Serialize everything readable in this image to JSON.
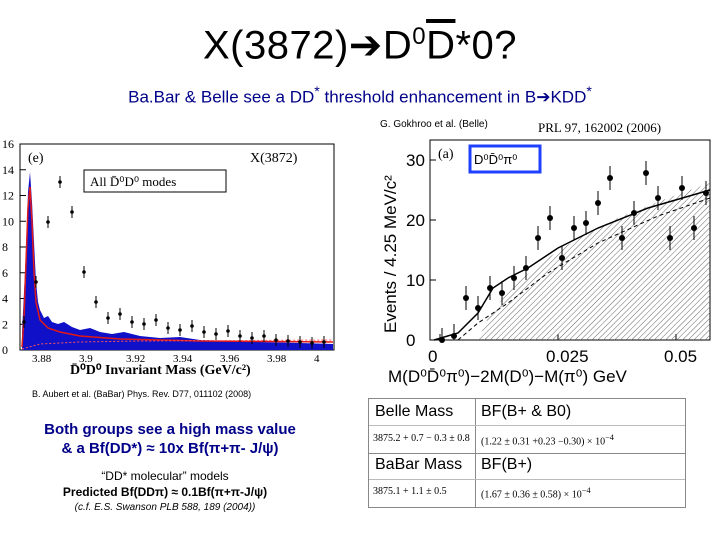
{
  "slide": {
    "title": "X(3872)",
    "title_tail": "D",
    "title_sup1": "0",
    "title_bar": "D",
    "title_star": "*0?",
    "arrow": "➔",
    "subtitle_pre": "Ba.Bar & Belle see a DD",
    "subtitle_mid": " threshold enhancement in B",
    "subtitle_post": "KDD",
    "subtitle_star": "*",
    "belle_cite": "G. Gokhroo et al. (Belle)",
    "babar_cite": "B. Aubert et al. (BaBar) Phys. Rev. D77, 011102 (2008)",
    "conclusion_line1": "Both groups see a high mass value",
    "conclusion_line2": "& a Bf(DD*) ≈ 10x Bf(π+π- J/ψ)",
    "model_line1": "“DD* molecular” models",
    "model_line2": "Predicted Bf(DDπ) ≈ 0.1Bf(π+π-J/ψ)",
    "model_line3": "(c.f. E.S. Swanson PLB 588, 189 (2004))"
  },
  "left_plot": {
    "panel_label": "(e)",
    "tag": "X(3872)",
    "legend": "All D̄⁰D⁰ modes",
    "xlabel": "D̄⁰D⁰ Invariant Mass (GeV/c²)",
    "yticks": [
      "0",
      "2",
      "4",
      "6",
      "8",
      "10",
      "12",
      "14",
      "16"
    ],
    "xticks": [
      "3.88",
      "3.9",
      "3.92",
      "3.94",
      "3.96",
      "3.98",
      "4"
    ]
  },
  "right_plot": {
    "ref": "PRL 97, 162002 (2006)",
    "panel_label": "(a)",
    "mode": "D⁰D̄⁰π⁰",
    "ylabel": "Events / 4.25 MeV/c²",
    "xlabel": "M(D⁰D̄⁰π⁰)−2M(D⁰)−M(π⁰) GeV",
    "yticks": [
      "0",
      "10",
      "20",
      "30"
    ],
    "xticks": [
      "0",
      "0.025",
      "0.05"
    ]
  },
  "table": {
    "belle_label": "Belle Mass",
    "belle_bf_label": "BF(B+ & B0)",
    "belle_mass": "3875.2 + 0.7 − 0.3 ± 0.8",
    "belle_bf": "(1.22 ± 0.31 +0.23 −0.30) × 10",
    "belle_exp": "−4",
    "babar_label": "BaBar Mass",
    "babar_bf_label": "BF(B+)",
    "babar_mass": "3875.1 + 1.1 ± 0.5",
    "babar_bf": "(1.67 ± 0.36 ± 0.58) × 10",
    "babar_exp": "−4"
  }
}
